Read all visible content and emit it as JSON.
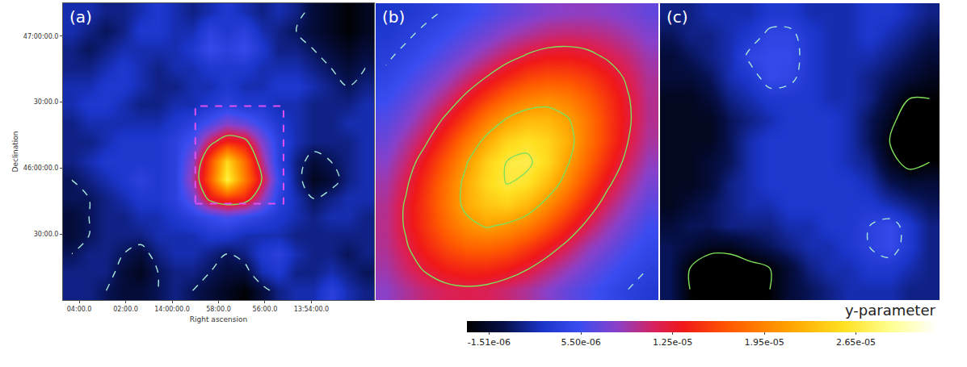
{
  "chart_data": [
    {
      "type": "heatmap",
      "title": "(a)",
      "xlabel": "Right ascension",
      "ylabel": "Declination",
      "xlim": [
        844.7,
        831.3
      ],
      "ylim": [
        45.0,
        47.25
      ],
      "xticks": [
        {
          "value": 844,
          "label": "04:00.0"
        },
        {
          "value": 842,
          "label": "02:00.0"
        },
        {
          "value": 840,
          "label": "14:00:00.0"
        },
        {
          "value": 838,
          "label": "58:00.0"
        },
        {
          "value": 836,
          "label": "56:00.0"
        },
        {
          "value": 834,
          "label": "13:54:00.0"
        }
      ],
      "yticks": [
        {
          "value": 47,
          "label": "47:00:00.0"
        },
        {
          "value": 46.5,
          "label": "30:00.0"
        },
        {
          "value": 46,
          "label": "46:00:00.0"
        },
        {
          "value": 45.5,
          "label": "30:00.0"
        }
      ],
      "x": [
        844.33,
        843.58,
        842.84,
        842.09,
        841.35,
        840.61,
        839.86,
        839.12,
        838.37,
        837.63,
        836.88,
        836.14,
        835.39,
        834.65,
        833.91,
        833.16,
        832.42,
        831.67
      ],
      "y": [
        47.18,
        47.04,
        46.9,
        46.76,
        46.62,
        46.48,
        46.34,
        46.2,
        46.05,
        45.91,
        45.77,
        45.63,
        45.49,
        45.35,
        45.21,
        45.07
      ],
      "z": [
        [
          2e-06,
          2e-06,
          1e-06,
          1e-06,
          2e-06,
          3e-06,
          2e-06,
          1e-06,
          2e-06,
          3e-06,
          2e-06,
          1e-06,
          2e-06,
          1e-06,
          -1e-06,
          -2e-06,
          -3e-06,
          -2e-06
        ],
        [
          2e-06,
          1e-06,
          0,
          1e-06,
          3e-06,
          3e-06,
          2e-06,
          2e-06,
          4e-06,
          3e-06,
          4e-06,
          2e-06,
          1e-06,
          0,
          -1e-06,
          -2e-06,
          -3e-06,
          -2e-06
        ],
        [
          1e-06,
          0,
          1e-06,
          2e-06,
          2e-06,
          2e-06,
          2e-06,
          3e-06,
          5e-06,
          4e-06,
          5e-06,
          3e-06,
          1e-06,
          1e-06,
          0,
          -1e-06,
          -2e-06,
          -1e-06
        ],
        [
          1e-06,
          1e-06,
          2e-06,
          3e-06,
          2e-06,
          1e-06,
          2e-06,
          2e-06,
          3e-06,
          3e-06,
          3e-06,
          2e-06,
          2e-06,
          2e-06,
          1e-06,
          0,
          -1e-06,
          0
        ],
        [
          2e-06,
          2e-06,
          3e-06,
          3e-06,
          2e-06,
          1e-06,
          1e-06,
          2e-06,
          2e-06,
          3e-06,
          2e-06,
          2e-06,
          3e-06,
          3e-06,
          2e-06,
          1e-06,
          0,
          1e-06
        ],
        [
          2e-06,
          3e-06,
          3e-06,
          2e-06,
          1e-06,
          1e-06,
          2e-06,
          2e-06,
          3e-06,
          4e-06,
          3e-06,
          3e-06,
          2e-06,
          2e-06,
          1e-06,
          1e-06,
          1e-06,
          2e-06
        ],
        [
          1e-06,
          2e-06,
          2e-06,
          2e-06,
          2e-06,
          2e-06,
          3e-06,
          4e-06,
          6e-06,
          8e-06,
          7e-06,
          5e-06,
          3e-06,
          2e-06,
          1e-06,
          1e-06,
          2e-06,
          2e-06
        ],
        [
          1e-06,
          1e-06,
          2e-06,
          3e-06,
          3e-06,
          3e-06,
          4e-06,
          6e-06,
          1.1e-05,
          1.4e-05,
          1.3e-05,
          8e-06,
          4e-06,
          2e-06,
          1e-06,
          1e-06,
          1e-06,
          2e-06
        ],
        [
          1e-06,
          2e-06,
          3e-06,
          3e-06,
          3e-06,
          3e-06,
          4e-06,
          8e-06,
          1.6e-05,
          2.5e-05,
          1.8e-05,
          1e-05,
          4e-06,
          1e-06,
          -1e-06,
          0,
          1e-06,
          2e-06
        ],
        [
          0,
          1e-06,
          2e-06,
          3e-06,
          4e-06,
          3e-06,
          4e-06,
          9e-06,
          1.7e-05,
          2.7e-05,
          1.9e-05,
          1.2e-05,
          5e-06,
          1e-06,
          -2e-06,
          -1e-06,
          1e-06,
          2e-06
        ],
        [
          0,
          0,
          1e-06,
          2e-06,
          3e-06,
          3e-06,
          4e-06,
          7e-06,
          1.3e-05,
          1.5e-05,
          1.4e-05,
          9e-06,
          4e-06,
          2e-06,
          0,
          1e-06,
          2e-06,
          2e-06
        ],
        [
          -1e-06,
          0,
          1e-06,
          1e-06,
          2e-06,
          2e-06,
          3e-06,
          4e-06,
          5e-06,
          6e-06,
          5e-06,
          4e-06,
          3e-06,
          2e-06,
          1e-06,
          2e-06,
          2e-06,
          1e-06
        ],
        [
          -1e-06,
          0,
          1e-06,
          1e-06,
          1e-06,
          2e-06,
          2e-06,
          2e-06,
          3e-06,
          3e-06,
          2e-06,
          2e-06,
          2e-06,
          1e-06,
          1e-06,
          1e-06,
          1e-06,
          1e-06
        ],
        [
          0,
          1e-06,
          1e-06,
          0,
          -1e-06,
          1e-06,
          2e-06,
          2e-06,
          1e-06,
          0,
          1e-06,
          3e-06,
          4e-06,
          2e-06,
          1e-06,
          1e-06,
          0,
          1e-06
        ],
        [
          1e-06,
          1e-06,
          1e-06,
          -1e-06,
          -2e-06,
          0,
          1e-06,
          1e-06,
          0,
          -1e-06,
          -1e-06,
          2e-06,
          3e-06,
          1e-06,
          1e-06,
          2e-06,
          1e-06,
          0
        ],
        [
          1e-06,
          1e-06,
          0,
          -1e-06,
          -1e-06,
          0,
          1e-06,
          0,
          -1e-06,
          -2e-06,
          -3e-06,
          -1e-06,
          1e-06,
          2e-06,
          2e-06,
          4e-06,
          2e-06,
          1e-06
        ]
      ],
      "contours": [
        {
          "value": 0,
          "color": "#a8e8d8",
          "line_style": "dash"
        },
        {
          "value": 1.2e-05,
          "color": "#7ee05a",
          "line_style": "solid"
        }
      ],
      "zoom_box": {
        "x": [
          839.0,
          835.2
        ],
        "y": [
          45.73,
          46.47
        ],
        "color": "#e050f0",
        "line_style": "dash"
      }
    },
    {
      "type": "heatmap",
      "title": "(b)",
      "tick_labels": false,
      "xlim": [
        -0.5,
        13.5
      ],
      "ylim": [
        13.5,
        -0.5
      ],
      "z": [
        [
          2.6e-06,
          3.1e-06,
          3.6e-06,
          4.3e-06,
          5.1e-06,
          5.9e-06,
          6.7e-06,
          7.4e-06,
          8.1e-06,
          8.4e-06,
          8.5e-06,
          8.2e-06,
          7.6e-06,
          6.9e-06
        ],
        [
          3.1e-06,
          3.7e-06,
          4.5e-06,
          5.4e-06,
          6.4e-06,
          7.4e-06,
          8.6e-06,
          9.5e-06,
          1.03e-05,
          1.06e-05,
          1.04e-05,
          9.9e-06,
          9e-06,
          7.9e-06
        ],
        [
          3.7e-06,
          4.5e-06,
          5.5e-06,
          6.7e-06,
          8e-06,
          9.5e-06,
          1.1e-05,
          1.23e-05,
          1.31e-05,
          1.32e-05,
          1.27e-05,
          1.16e-05,
          1.04e-05,
          8.9e-06
        ],
        [
          4.4e-06,
          5.5e-06,
          6.8e-06,
          8.3e-06,
          1.02e-05,
          1.21e-05,
          1.4e-05,
          1.56e-05,
          1.63e-05,
          1.61e-05,
          1.52e-05,
          1.35e-05,
          1.15e-05,
          9.5e-06
        ],
        [
          5.3e-06,
          6.6e-06,
          8.3e-06,
          1.03e-05,
          1.27e-05,
          1.53e-05,
          1.76e-05,
          1.91e-05,
          1.98e-05,
          1.91e-05,
          1.72e-05,
          1.48e-05,
          1.22e-05,
          9.8e-06
        ],
        [
          6.3e-06,
          7.8e-06,
          1e-05,
          1.26e-05,
          1.56e-05,
          1.89e-05,
          2.13e-05,
          2.28e-05,
          2.28e-05,
          2.13e-05,
          1.86e-05,
          1.53e-05,
          1.24e-05,
          9.8e-06
        ],
        [
          7.2e-06,
          9.3e-06,
          1.17e-05,
          1.5e-05,
          1.86e-05,
          2.19e-05,
          2.47e-05,
          2.58e-05,
          2.47e-05,
          2.22e-05,
          1.86e-05,
          1.52e-05,
          1.2e-05,
          9.4e-06
        ],
        [
          8.2e-06,
          1.05e-05,
          1.36e-05,
          1.7e-05,
          2.08e-05,
          2.44e-05,
          2.66e-05,
          2.7e-05,
          2.51e-05,
          2.13e-05,
          1.76e-05,
          1.41e-05,
          1.11e-05,
          8.6e-06
        ],
        [
          9.1e-06,
          1.16e-05,
          1.48e-05,
          1.84e-05,
          2.19e-05,
          2.51e-05,
          2.66e-05,
          2.58e-05,
          2.31e-05,
          1.96e-05,
          1.58e-05,
          1.25e-05,
          9.8e-06,
          7.6e-06
        ],
        [
          9.7e-06,
          1.23e-05,
          1.53e-05,
          1.86e-05,
          2.19e-05,
          2.37e-05,
          2.44e-05,
          2.28e-05,
          2e-05,
          1.68e-05,
          1.36e-05,
          1.07e-05,
          8.4e-06,
          6.6e-06
        ],
        [
          9.9e-06,
          1.23e-05,
          1.5e-05,
          1.78e-05,
          2e-05,
          2.13e-05,
          2.05e-05,
          1.91e-05,
          1.67e-05,
          1.39e-05,
          1.13e-05,
          8.9e-06,
          7.1e-06,
          5.6e-06
        ],
        [
          9.7e-06,
          1.17e-05,
          1.4e-05,
          1.6e-05,
          1.74e-05,
          1.76e-05,
          1.7e-05,
          1.53e-05,
          1.33e-05,
          1.12e-05,
          8.9e-06,
          7.4e-06,
          5.9e-06,
          4.8e-06
        ],
        [
          9.1e-06,
          1.08e-05,
          1.24e-05,
          1.37e-05,
          1.43e-05,
          1.43e-05,
          1.35e-05,
          1.22e-05,
          1.05e-05,
          8.8e-06,
          7.3e-06,
          6e-06,
          4.9e-06,
          4e-06
        ],
        [
          8.3e-06,
          9.5e-06,
          1.06e-05,
          1.13e-05,
          1.16e-05,
          1.13e-05,
          1.05e-05,
          9.5e-06,
          8.2e-06,
          6.9e-06,
          5.9e-06,
          4.9e-06,
          4e-06,
          3.3e-06
        ]
      ],
      "contours": [
        {
          "value": 4e-06,
          "color": "#a8e8d8",
          "line_style": "dash"
        },
        {
          "value": 1.2e-05,
          "color": "#7ee05a",
          "line_style": "solid"
        },
        {
          "value": 2.1e-05,
          "color": "#7ee05a",
          "line_style": "solid"
        },
        {
          "value": 2.65e-05,
          "color": "#7ee05a",
          "line_style": "solid"
        }
      ]
    },
    {
      "type": "heatmap",
      "title": "(c)",
      "tick_labels": false,
      "xlim": [
        -0.5,
        13.5
      ],
      "ylim": [
        13.5,
        -0.5
      ],
      "z": [
        [
          1e-06,
          1e-06,
          2e-06,
          2e-06,
          2e-06,
          3e-06,
          3e-06,
          2e-06,
          2e-06,
          2e-06,
          3e-06,
          3e-06,
          2e-06,
          1e-06
        ],
        [
          0,
          1e-06,
          1e-06,
          2e-06,
          3e-06,
          4.5e-06,
          4.5e-06,
          3e-06,
          2e-06,
          2e-06,
          3e-06,
          2e-06,
          1e-06,
          0
        ],
        [
          -1e-06,
          0,
          1e-06,
          2e-06,
          4.5e-06,
          5e-06,
          5e-06,
          3e-06,
          2e-06,
          2e-06,
          2e-06,
          1e-06,
          0,
          -1e-06
        ],
        [
          -1e-06,
          -1e-06,
          0,
          2e-06,
          3e-06,
          5e-06,
          4.5e-06,
          3e-06,
          2e-06,
          2e-06,
          1e-06,
          0,
          -1e-06,
          -2e-06
        ],
        [
          -2e-06,
          -2e-06,
          -1e-06,
          1e-06,
          2e-06,
          3e-06,
          3e-06,
          3e-06,
          2e-06,
          2e-06,
          1e-06,
          -1e-06,
          -3e-06,
          -3e-06
        ],
        [
          -2e-06,
          -2e-06,
          -2e-06,
          0,
          1e-06,
          2e-06,
          3e-06,
          3e-06,
          3e-06,
          2e-06,
          0,
          -2e-06,
          -5e-06,
          -4e-06
        ],
        [
          -2e-06,
          -2e-06,
          -2e-06,
          0,
          2e-06,
          3e-06,
          3e-06,
          3e-06,
          3e-06,
          2e-06,
          0,
          -3e-06,
          -5e-06,
          -4e-06
        ],
        [
          -2e-06,
          -2e-06,
          -1e-06,
          0,
          2e-06,
          3e-06,
          3e-06,
          3e-06,
          3e-06,
          2e-06,
          1e-06,
          -2e-06,
          -4e-06,
          -3e-06
        ],
        [
          -2e-06,
          -2e-06,
          -1e-06,
          1e-06,
          2e-06,
          3e-06,
          3e-06,
          3e-06,
          3e-06,
          3e-06,
          2e-06,
          0,
          -1e-06,
          -1e-06
        ],
        [
          -2e-06,
          -1e-06,
          0,
          1e-06,
          2e-06,
          2e-06,
          3e-06,
          3e-06,
          3e-06,
          3e-06,
          3e-06,
          2e-06,
          1e-06,
          0
        ],
        [
          -1e-06,
          0,
          0,
          1e-06,
          1e-06,
          1e-06,
          2e-06,
          2e-06,
          3e-06,
          3e-06,
          4e-06,
          5e-06,
          3e-06,
          1e-06
        ],
        [
          0,
          -1e-06,
          -2e-06,
          -2e-06,
          -1e-06,
          0,
          1e-06,
          2e-06,
          2e-06,
          3e-06,
          4e-06,
          5e-06,
          3e-06,
          1e-06
        ],
        [
          0,
          -3e-06,
          -5e-06,
          -5e-06,
          -4e-06,
          -3e-06,
          -1e-06,
          1e-06,
          2e-06,
          2e-06,
          3e-06,
          3e-06,
          2e-06,
          1e-06
        ],
        [
          0,
          -3e-06,
          -4e-06,
          -5e-06,
          -4e-06,
          -3e-06,
          -1e-06,
          0,
          1e-06,
          2e-06,
          2e-06,
          2e-06,
          1e-06,
          1e-06
        ]
      ],
      "contours": [
        {
          "value": -3e-06,
          "color": "#7ee05a",
          "line_style": "solid"
        },
        {
          "value": 4e-06,
          "color": "#a8e8d8",
          "line_style": "dash"
        }
      ]
    }
  ],
  "colorbar": {
    "title": "y-parameter",
    "range": [
      -3.2e-06,
      3.27e-05
    ],
    "ticks": [
      {
        "value": -1.51e-06,
        "label": "-1.51e-06"
      },
      {
        "value": 5.5e-06,
        "label": "5.50e-06"
      },
      {
        "value": 1.25e-05,
        "label": "1.25e-05"
      },
      {
        "value": 1.95e-05,
        "label": "1.95e-05"
      },
      {
        "value": 2.65e-05,
        "label": "2.65e-05"
      }
    ]
  }
}
